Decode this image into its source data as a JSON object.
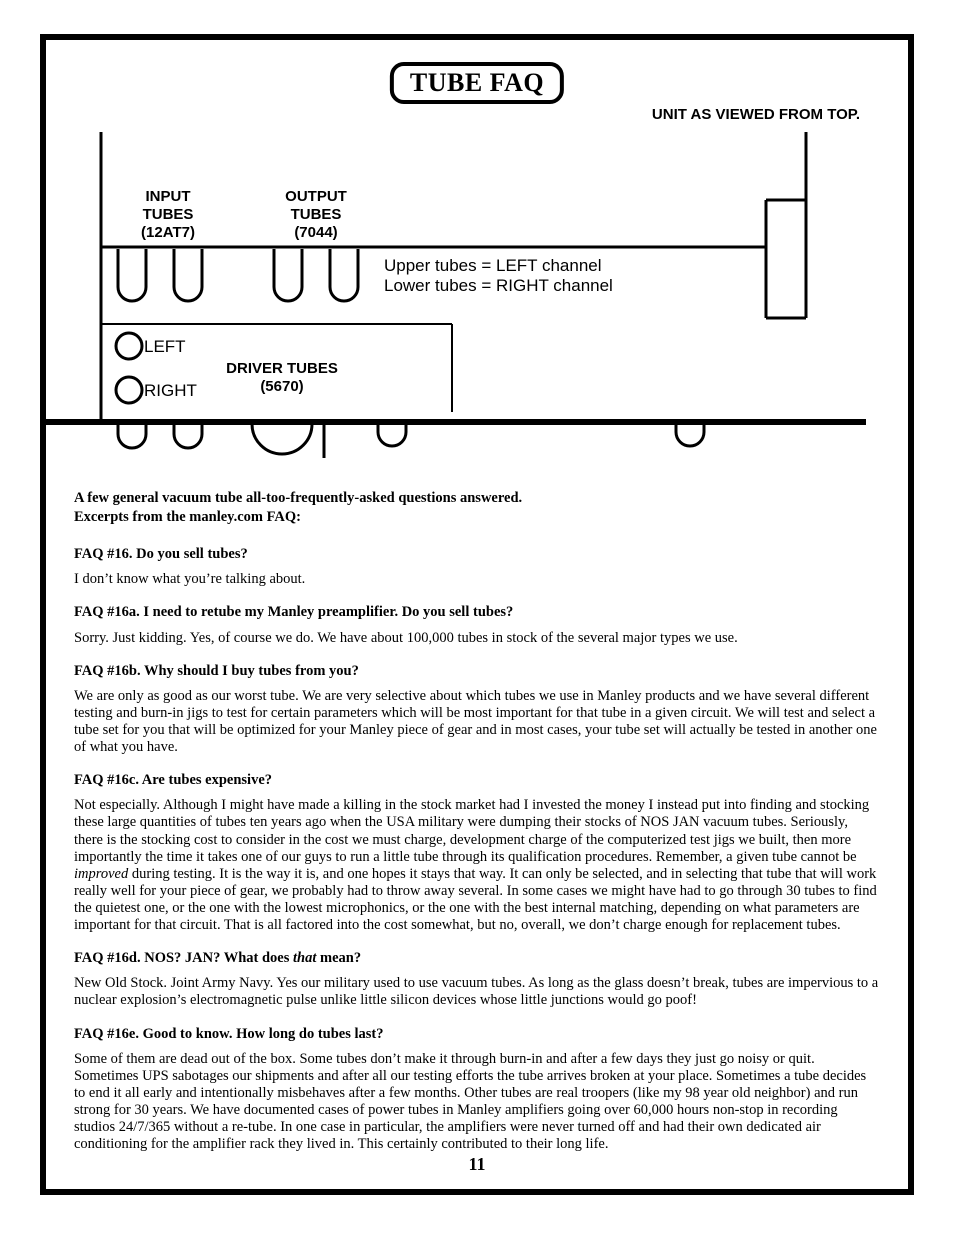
{
  "title": "TUBE FAQ",
  "top_right": "UNIT AS VIEWED FROM TOP.",
  "diagram": {
    "input_tubes": {
      "l1": "INPUT",
      "l2": "TUBES",
      "l3": "(12AT7)"
    },
    "output_tubes": {
      "l1": "OUTPUT",
      "l2": "TUBES",
      "l3": "(7044)"
    },
    "channels": {
      "upper": "Upper tubes = LEFT channel",
      "lower": "Lower tubes = RIGHT channel"
    },
    "driver": {
      "l1": "DRIVER TUBES",
      "l2": "(5670)"
    },
    "left": "LEFT",
    "right": "RIGHT",
    "stroke": "#000000",
    "stroke_thin": 2,
    "stroke_mid": 3,
    "stroke_thick": 5
  },
  "intro1": "A few general vacuum tube all-too-frequently-asked questions answered.",
  "intro2": "Excerpts from the manley.com FAQ:",
  "faq": [
    {
      "q": "FAQ #16. Do you sell tubes?",
      "a": "I don’t know what you’re talking about."
    },
    {
      "q": "FAQ #16a. I need to retube my Manley preamplifier. Do you sell tubes?",
      "a": "Sorry. Just kidding. Yes, of course we do.  We have about 100,000 tubes in stock of the several major types we use."
    },
    {
      "q": "FAQ #16b. Why should I buy tubes from you?",
      "a": "We are only as good as our worst tube. We are very selective about which tubes we use in Manley products and we have several different testing and burn-in jigs to test for certain parameters which will be most important for that tube in a given circuit. We will test and select a tube set for you that will be optimized for your Manley piece of gear and in most cases, your tube set will actually be tested in another one of what you have."
    },
    {
      "q": "FAQ #16c. Are tubes expensive?",
      "a": "Not especially. Although I might have made a killing in the stock market had I invested the money I instead put into finding and stocking these large quantities of tubes ten years ago when the USA military were dumping their stocks of NOS JAN vacuum tubes. Seriously, there is the stocking cost to consider in the cost we must charge, development charge of the computerized test jigs we built, then more importantly the time it takes one of our guys to run a little tube through its qualification procedures. Remember, a given tube cannot be <em>improved</em> during testing. It is the way it is, and one hopes it stays that way. It can only be selected, and in selecting that tube that will work really well for your piece of gear, we probably had to throw away several. In some cases we might have had to go through 30 tubes to find the quietest one, or the one with the lowest microphonics, or the one with the best internal matching, depending on what parameters are important for that circuit. That is all factored into the cost somewhat, but no, overall, we don’t charge enough for replacement tubes."
    },
    {
      "q": "FAQ #16d. NOS? JAN? What does <em>that</em> mean?",
      "a": "New Old Stock. Joint Army Navy. Yes our military used to use vacuum tubes. As long as the glass doesn’t break, tubes are impervious to a nuclear explosion’s electromagnetic pulse unlike little silicon devices whose little junctions would go poof!"
    },
    {
      "q": "FAQ #16e. Good to know. How long do tubes last?",
      "a": "Some of them are dead out of the box. Some tubes don’t make it through burn-in and after a few days they just go noisy or quit. Sometimes UPS sabotages our shipments and after all our testing efforts the tube arrives broken at your place. Sometimes a tube decides to end it all early and intentionally misbehaves after a few months. Other tubes are real troopers (like my 98 year old neighbor) and run strong for 30 years. We have documented cases of power tubes in Manley amplifiers going over 60,000 hours non-stop in recording studios 24/7/365 without a re-tube. In one case in particular, the amplifiers were never turned off and had their own dedicated air conditioning for the amplifier rack they lived in. This certainly contributed to their long life."
    }
  ],
  "page_number": "11"
}
